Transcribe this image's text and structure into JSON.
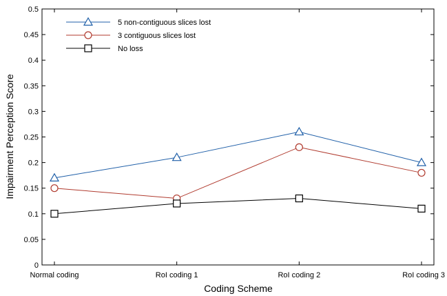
{
  "chart_data": {
    "type": "line",
    "title": "",
    "xlabel": "Coding Scheme",
    "ylabel": "Impairment Perception Score",
    "categories": [
      "Normal coding",
      "RoI coding 1",
      "RoI coding 2",
      "RoI coding 3"
    ],
    "ylim": [
      0,
      0.5
    ],
    "yticks": [
      "0",
      "0.05",
      "0.1",
      "0.15",
      "0.2",
      "0.25",
      "0.3",
      "0.35",
      "0.4",
      "0.45",
      "0.5"
    ],
    "grid": false,
    "legend_position": "top-left",
    "series": [
      {
        "name": "5 non-contiguous slices lost",
        "values": [
          0.17,
          0.21,
          0.26,
          0.2
        ],
        "color": "#1f5fa8",
        "marker": "triangle"
      },
      {
        "name": "3 contiguous slices lost",
        "values": [
          0.15,
          0.13,
          0.23,
          0.18
        ],
        "color": "#b03a2e",
        "marker": "circle"
      },
      {
        "name": "No loss",
        "values": [
          0.1,
          0.12,
          0.13,
          0.11
        ],
        "color": "#000000",
        "marker": "square"
      }
    ]
  }
}
